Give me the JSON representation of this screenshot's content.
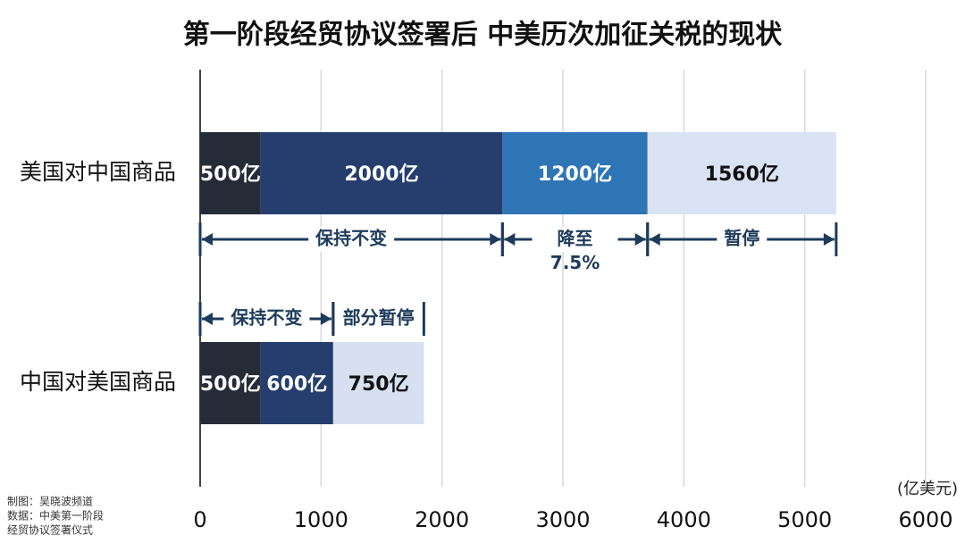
{
  "chart_data": {
    "type": "stacked-barh",
    "title": "第一阶段经贸协议签署后  中美历次加征关税的现状",
    "categories": [
      "美国对中国商品",
      "中国对美国商品"
    ],
    "series": [
      {
        "colors": [
          "#262b38",
          "#262b38"
        ],
        "values": [
          500,
          500
        ],
        "value_labels": [
          "500亿",
          "500亿"
        ]
      },
      {
        "colors": [
          "#253e6d",
          "#253e6d"
        ],
        "values": [
          2000,
          600
        ],
        "value_labels": [
          "2000亿",
          "600亿"
        ]
      },
      {
        "colors": [
          "#2e75b6",
          "#d6e0f0"
        ],
        "values": [
          1200,
          750
        ],
        "value_labels": [
          "1200亿",
          "750亿"
        ]
      },
      {
        "colors": [
          "#dae3f3",
          "#dae3f3"
        ],
        "values": [
          1560,
          null
        ],
        "value_labels": [
          "1560亿",
          null
        ]
      }
    ],
    "annotations": [
      {
        "category": 0,
        "text": "保持不变",
        "from": 0,
        "to": 2500,
        "arrows": true
      },
      {
        "category": 0,
        "text": "降至\n7.5%",
        "from": 2500,
        "to": 3700,
        "arrows": true
      },
      {
        "category": 0,
        "text": "暂停",
        "from": 3700,
        "to": 5260,
        "arrows": true
      },
      {
        "category": 1,
        "text": "保持不变",
        "from": 0,
        "to": 1100,
        "arrows": true
      },
      {
        "category": 1,
        "text": "部分暂停",
        "from": 1100,
        "to": 1850,
        "arrows": false
      }
    ],
    "xlim": [
      0,
      6000
    ],
    "xticks": [
      0,
      1000,
      2000,
      3000,
      4000,
      5000,
      6000
    ],
    "x_unit": "(亿美元)",
    "grid": true,
    "source": [
      "制图：吴晓波频道",
      "数据：中美第一阶段",
      "经贸协议签署仪式"
    ]
  }
}
